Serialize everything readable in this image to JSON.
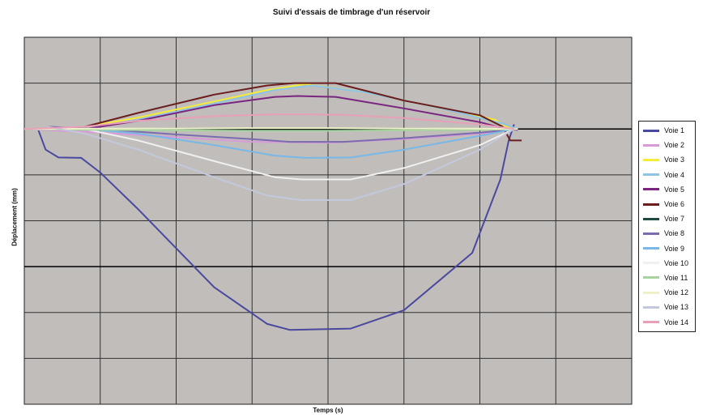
{
  "chart_data": {
    "type": "line",
    "title": "Suivi d'essais de timbrage d'un réservoir",
    "xlabel": "Temps (s)",
    "ylabel": "Déplacement (mm)",
    "grid": true,
    "legend_position": "right",
    "plot_background": "#c0bdba",
    "x_range": [
      0,
      8
    ],
    "y_range": [
      -6,
      2
    ],
    "series": [
      {
        "name": "Voie 1",
        "color": "#4a49a0",
        "x": [
          0.18,
          0.28,
          0.45,
          0.75,
          1.0,
          1.5,
          2.5,
          3.2,
          3.5,
          4.3,
          5.0,
          5.9,
          6.27,
          6.38,
          6.45
        ],
        "y": [
          0,
          -0.45,
          -0.62,
          -0.63,
          -0.95,
          -1.75,
          -3.45,
          -4.25,
          -4.38,
          -4.35,
          -3.95,
          -2.7,
          -1.1,
          -0.25,
          0.1
        ]
      },
      {
        "name": "Voie 2",
        "color": "#d89ad8",
        "x": [
          0.0,
          1.0,
          2.0,
          3.0,
          4.0,
          5.0,
          6.0,
          6.5
        ],
        "y": [
          0,
          -0.08,
          -0.18,
          -0.28,
          -0.3,
          -0.22,
          -0.1,
          0
        ]
      },
      {
        "name": "Voie 3",
        "color": "#f2ec3a",
        "x": [
          0.8,
          1.5,
          2.5,
          3.2,
          3.7,
          4.5,
          5.5,
          6.2,
          6.35,
          6.45
        ],
        "y": [
          0.05,
          0.25,
          0.6,
          0.85,
          0.98,
          0.8,
          0.45,
          0.2,
          0.05,
          0
        ]
      },
      {
        "name": "Voie 4",
        "color": "#8ec4e6",
        "x": [
          0.8,
          1.5,
          2.5,
          3.3,
          3.8,
          4.5,
          5.5,
          6.3,
          6.5
        ],
        "y": [
          0,
          0.2,
          0.55,
          0.85,
          0.95,
          0.8,
          0.45,
          0.12,
          0
        ]
      },
      {
        "name": "Voie 5",
        "color": "#7a2580",
        "x": [
          0.8,
          1.5,
          2.5,
          3.3,
          3.6,
          4.1,
          5.0,
          6.0,
          6.35,
          6.5
        ],
        "y": [
          0,
          0.18,
          0.52,
          0.7,
          0.72,
          0.7,
          0.45,
          0.15,
          0,
          -0.02
        ]
      },
      {
        "name": "Voie 6",
        "color": "#6a1e1e",
        "x": [
          0.8,
          1.5,
          2.5,
          3.2,
          3.55,
          4.1,
          5.0,
          6.0,
          6.3,
          6.4,
          6.55
        ],
        "y": [
          0.05,
          0.35,
          0.75,
          0.95,
          1.0,
          1.0,
          0.62,
          0.3,
          0.05,
          -0.25,
          -0.25
        ]
      },
      {
        "name": "Voie 7",
        "color": "#1f4a40",
        "x": [
          0.0,
          1.0,
          2.0,
          3.0,
          4.0,
          5.0,
          6.0,
          6.5
        ],
        "y": [
          0,
          -0.01,
          -0.02,
          -0.03,
          -0.03,
          -0.02,
          -0.01,
          0
        ]
      },
      {
        "name": "Voie 8",
        "color": "#7a6cae",
        "x": [
          0.3,
          1.0,
          2.0,
          3.0,
          3.5,
          4.2,
          5.0,
          6.0,
          6.5
        ],
        "y": [
          0.05,
          0,
          -0.12,
          -0.22,
          -0.28,
          -0.28,
          -0.2,
          -0.08,
          0
        ]
      },
      {
        "name": "Voie 9",
        "color": "#78b8e8",
        "x": [
          0.8,
          1.5,
          2.5,
          3.3,
          3.7,
          4.3,
          5.0,
          6.0,
          6.45
        ],
        "y": [
          0,
          -0.1,
          -0.35,
          -0.58,
          -0.63,
          -0.62,
          -0.45,
          -0.15,
          0
        ]
      },
      {
        "name": "Voie 10",
        "color": "#f0f0f0",
        "x": [
          0.8,
          1.5,
          2.5,
          3.3,
          3.65,
          4.3,
          5.0,
          6.0,
          6.45
        ],
        "y": [
          0,
          -0.25,
          -0.7,
          -1.05,
          -1.1,
          -1.1,
          -0.85,
          -0.35,
          0
        ]
      },
      {
        "name": "Voie 11",
        "color": "#a8d4a0",
        "x": [
          0.0,
          1.0,
          2.0,
          3.0,
          4.0,
          5.0,
          6.0,
          6.5
        ],
        "y": [
          0,
          -0.02,
          -0.03,
          -0.04,
          -0.04,
          -0.03,
          -0.02,
          0
        ]
      },
      {
        "name": "Voie 12",
        "color": "#eef0c8",
        "x": [
          0.0,
          1.0,
          2.0,
          3.0,
          4.0,
          5.0,
          6.0,
          6.5
        ],
        "y": [
          0,
          0.01,
          0.01,
          0.02,
          0.02,
          0.01,
          0.01,
          0
        ]
      },
      {
        "name": "Voie 13",
        "color": "#c4c8dc",
        "x": [
          0.3,
          0.8,
          1.5,
          2.5,
          3.2,
          3.65,
          4.3,
          5.0,
          6.0,
          6.45
        ],
        "y": [
          0.05,
          -0.1,
          -0.45,
          -1.05,
          -1.45,
          -1.55,
          -1.55,
          -1.2,
          -0.45,
          0
        ]
      },
      {
        "name": "Voie 14",
        "color": "#e8a0b8",
        "x": [
          0.0,
          0.8,
          1.5,
          2.5,
          3.3,
          3.65,
          4.2,
          5.0,
          6.0,
          6.45
        ],
        "y": [
          0,
          0.05,
          0.18,
          0.28,
          0.32,
          0.32,
          0.31,
          0.24,
          0.1,
          0
        ]
      }
    ]
  }
}
